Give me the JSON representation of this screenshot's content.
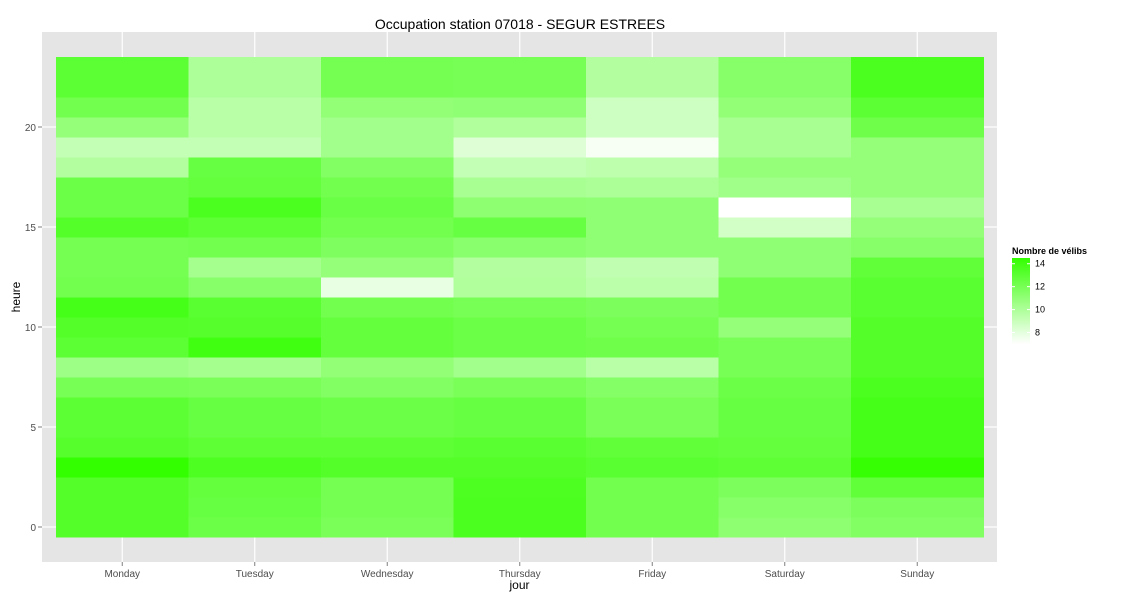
{
  "chart_data": {
    "type": "heatmap",
    "title": "Occupation station 07018 - SEGUR ESTREES",
    "xlabel": "jour",
    "ylabel": "heure",
    "x_categories": [
      "Monday",
      "Tuesday",
      "Wednesday",
      "Thursday",
      "Friday",
      "Saturday",
      "Sunday"
    ],
    "y_values": [
      0,
      1,
      2,
      3,
      4,
      5,
      6,
      7,
      8,
      9,
      10,
      11,
      12,
      13,
      14,
      15,
      16,
      17,
      18,
      19,
      20,
      21,
      22,
      23
    ],
    "y_ticks": [
      0,
      5,
      10,
      15,
      20
    ],
    "legend": {
      "title": "Nombre de vélibs",
      "ticks": [
        8,
        10,
        12,
        14
      ],
      "range": [
        7,
        14.5
      ],
      "position": "right"
    },
    "colors": {
      "low": "#ffffff",
      "high": "#33ff00",
      "panel": "#e5e5e5",
      "grid": "#ffffff"
    },
    "values": [
      [
        13.3,
        12.4,
        11.9,
        13.6,
        12.2,
        11.2,
        11.6
      ],
      [
        13.3,
        12.6,
        12.1,
        13.6,
        12.2,
        11.4,
        11.8
      ],
      [
        13.3,
        12.7,
        12.1,
        13.5,
        12.2,
        11.8,
        12.8
      ],
      [
        14.5,
        13.5,
        13.3,
        13.3,
        13.1,
        12.9,
        14.4
      ],
      [
        13.2,
        12.9,
        12.9,
        13.1,
        12.8,
        12.7,
        13.8
      ],
      [
        13.0,
        12.6,
        12.4,
        12.6,
        11.9,
        12.6,
        13.8
      ],
      [
        13.0,
        12.6,
        12.4,
        12.6,
        11.9,
        12.6,
        13.8
      ],
      [
        12.0,
        11.9,
        11.6,
        11.9,
        11.5,
        12.4,
        13.6
      ],
      [
        10.6,
        10.3,
        11.0,
        10.4,
        9.6,
        12.0,
        13.3
      ],
      [
        13.0,
        14.0,
        12.7,
        12.4,
        12.3,
        12.0,
        13.3
      ],
      [
        13.3,
        13.2,
        12.7,
        12.4,
        12.1,
        10.9,
        13.3
      ],
      [
        13.8,
        13.1,
        12.2,
        12.0,
        11.8,
        12.2,
        13.1
      ],
      [
        12.2,
        11.4,
        7.8,
        9.9,
        9.5,
        12.2,
        13.1
      ],
      [
        12.1,
        10.3,
        10.9,
        9.8,
        9.3,
        11.1,
        12.8
      ],
      [
        12.1,
        12.2,
        11.7,
        11.3,
        11.1,
        11.1,
        11.4
      ],
      [
        13.3,
        12.9,
        12.2,
        12.6,
        11.1,
        8.7,
        10.9
      ],
      [
        12.4,
        13.6,
        12.5,
        11.2,
        11.1,
        7.0,
        10.2
      ],
      [
        12.4,
        12.7,
        12.2,
        10.2,
        10.1,
        10.5,
        10.9
      ],
      [
        9.8,
        12.6,
        11.6,
        9.2,
        9.4,
        10.9,
        10.9
      ],
      [
        9.2,
        9.2,
        10.4,
        8.2,
        7.3,
        10.2,
        10.9
      ],
      [
        10.9,
        9.6,
        10.4,
        9.9,
        8.8,
        10.2,
        12.3
      ],
      [
        12.2,
        9.6,
        11.0,
        11.1,
        8.8,
        11.0,
        13.0
      ],
      [
        13.0,
        10.0,
        12.1,
        12.0,
        9.8,
        11.4,
        13.6
      ],
      [
        13.0,
        10.0,
        12.1,
        12.0,
        9.8,
        11.4,
        13.6
      ]
    ]
  }
}
